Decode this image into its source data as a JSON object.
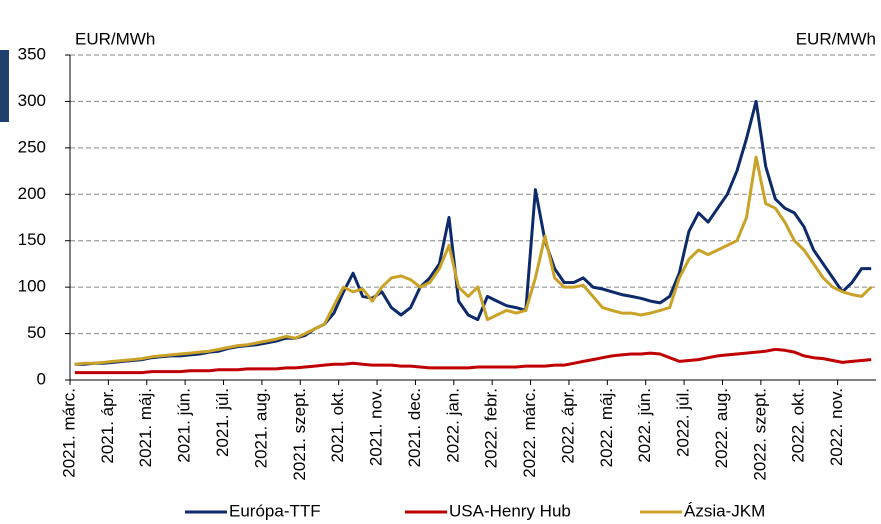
{
  "chart_data": {
    "type": "line",
    "ylabel": "EUR/MWh",
    "y2label": "EUR/MWh",
    "categories": [
      "2021. márc.",
      null,
      null,
      null,
      "2021. ápr.",
      null,
      null,
      null,
      "2021. máj.",
      null,
      null,
      null,
      "2021. jún.",
      null,
      null,
      null,
      "2021. júl.",
      null,
      null,
      null,
      "2021. aug.",
      null,
      null,
      null,
      "2021. szept.",
      null,
      null,
      null,
      "2021. okt.",
      null,
      null,
      null,
      "2021. nov.",
      null,
      null,
      null,
      "2021. dec.",
      null,
      null,
      null,
      "2022. jan.",
      null,
      null,
      null,
      "2022. febr.",
      null,
      null,
      null,
      "2022. márc.",
      null,
      null,
      null,
      "2022. ápr.",
      null,
      null,
      null,
      "2022. máj.",
      null,
      null,
      null,
      "2022. jún.",
      null,
      null,
      null,
      "2022. júl.",
      null,
      null,
      null,
      "2022. aug.",
      null,
      null,
      null,
      "2022. szept.",
      null,
      null,
      null,
      "2022. okt.",
      null,
      null,
      null,
      "2022. nov.",
      null,
      null,
      null
    ],
    "series": [
      {
        "name": "Európa-TTF",
        "color": "#0d2a6b",
        "values": [
          17,
          17,
          18,
          18,
          19,
          20,
          21,
          22,
          24,
          25,
          26,
          26,
          27,
          28,
          30,
          31,
          34,
          36,
          37,
          38,
          40,
          42,
          45,
          45,
          48,
          55,
          60,
          72,
          95,
          115,
          90,
          88,
          95,
          78,
          70,
          78,
          100,
          110,
          125,
          175,
          85,
          70,
          65,
          90,
          85,
          80,
          78,
          75,
          205,
          150,
          120,
          105,
          105,
          110,
          100,
          98,
          95,
          92,
          90,
          88,
          85,
          83,
          90,
          115,
          160,
          180,
          170,
          185,
          200,
          225,
          260,
          300,
          230,
          195,
          185,
          180,
          165,
          140,
          125,
          110,
          95,
          105,
          120,
          120
        ]
      },
      {
        "name": "USA-Henry Hub",
        "color": "#c00000",
        "values": [
          8,
          8,
          8,
          8,
          8,
          8,
          8,
          8,
          9,
          9,
          9,
          9,
          10,
          10,
          10,
          11,
          11,
          11,
          12,
          12,
          12,
          12,
          13,
          13,
          14,
          15,
          16,
          17,
          17,
          18,
          17,
          16,
          16,
          16,
          15,
          15,
          14,
          13,
          13,
          13,
          13,
          13,
          14,
          14,
          14,
          14,
          14,
          15,
          15,
          15,
          16,
          16,
          18,
          20,
          22,
          24,
          26,
          27,
          28,
          28,
          29,
          28,
          24,
          20,
          21,
          22,
          24,
          26,
          27,
          28,
          29,
          30,
          31,
          33,
          32,
          30,
          26,
          24,
          23,
          21,
          19,
          20,
          21,
          22
        ]
      },
      {
        "name": "Ázsia-JKM",
        "color": "#c9a227",
        "values": [
          17,
          18,
          18,
          19,
          20,
          21,
          22,
          23,
          25,
          26,
          27,
          28,
          29,
          30,
          31,
          33,
          35,
          37,
          38,
          40,
          42,
          44,
          47,
          45,
          50,
          55,
          60,
          80,
          100,
          95,
          98,
          85,
          100,
          110,
          112,
          108,
          100,
          105,
          120,
          145,
          100,
          90,
          100,
          65,
          70,
          75,
          72,
          75,
          110,
          155,
          110,
          100,
          100,
          102,
          90,
          78,
          75,
          72,
          72,
          70,
          72,
          75,
          78,
          110,
          130,
          140,
          135,
          140,
          145,
          150,
          175,
          240,
          190,
          185,
          170,
          150,
          140,
          125,
          110,
          100,
          95,
          92,
          90,
          100
        ]
      }
    ],
    "ylim": [
      0,
      350
    ],
    "yticks": [
      0,
      50,
      100,
      150,
      200,
      250,
      300,
      350
    ],
    "grid": true
  }
}
